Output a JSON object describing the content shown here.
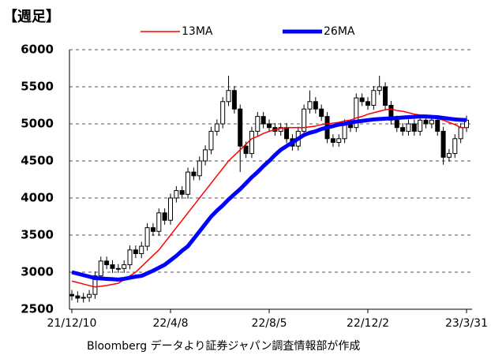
{
  "chart_data": {
    "type": "candlestick",
    "title": "【週足】",
    "source": "Bloomberg データより証券ジャパン調査情報部が作成",
    "categories": [
      "21/12/10",
      null,
      null,
      null,
      null,
      null,
      null,
      null,
      null,
      null,
      null,
      null,
      null,
      null,
      null,
      null,
      null,
      "22/4/8",
      null,
      null,
      null,
      null,
      null,
      null,
      null,
      null,
      null,
      null,
      null,
      null,
      null,
      null,
      null,
      null,
      "22/8/5",
      null,
      null,
      null,
      null,
      null,
      null,
      null,
      null,
      null,
      null,
      null,
      null,
      null,
      null,
      null,
      null,
      "22/12/2",
      null,
      null,
      null,
      null,
      null,
      null,
      null,
      null,
      null,
      null,
      null,
      null,
      null,
      null,
      null,
      null,
      "23/3/31"
    ],
    "open": [
      2700,
      2680,
      2650,
      2660,
      2700,
      2950,
      3150,
      3100,
      3050,
      3050,
      3100,
      3300,
      3250,
      3350,
      3600,
      3550,
      3800,
      3700,
      4000,
      4100,
      4050,
      4350,
      4300,
      4500,
      4650,
      4900,
      5000,
      5300,
      5450,
      5200,
      4700,
      4600,
      4900,
      5100,
      5000,
      4950,
      4900,
      4950,
      4800,
      4700,
      4900,
      5200,
      5300,
      5200,
      5100,
      4800,
      4750,
      4800,
      5000,
      4950,
      5350,
      5300,
      5250,
      5450,
      5500,
      5250,
      5050,
      4950,
      4900,
      5000,
      4900,
      5050,
      5000,
      5050,
      4900,
      4550,
      4600,
      4800,
      4950
    ],
    "high": [
      2760,
      2740,
      2720,
      2760,
      3010,
      3210,
      3210,
      3160,
      3110,
      3160,
      3360,
      3360,
      3410,
      3660,
      3660,
      3860,
      3860,
      4060,
      4160,
      4160,
      4410,
      4410,
      4560,
      4710,
      4960,
      5060,
      5360,
      5650,
      5510,
      5260,
      4760,
      4960,
      5160,
      5160,
      5060,
      5010,
      5010,
      5010,
      4860,
      4960,
      5260,
      5450,
      5360,
      5260,
      5160,
      4860,
      4860,
      5060,
      5060,
      5410,
      5410,
      5360,
      5510,
      5650,
      5560,
      5310,
      5110,
      5010,
      5060,
      5060,
      5110,
      5110,
      5110,
      5110,
      4960,
      4660,
      4860,
      5010,
      5110
    ],
    "low": [
      2620,
      2590,
      2590,
      2600,
      2640,
      2890,
      3040,
      2990,
      2990,
      2990,
      3040,
      3190,
      3190,
      3290,
      3490,
      3490,
      3640,
      3640,
      3940,
      3990,
      3990,
      4240,
      4240,
      4440,
      4590,
      4840,
      4940,
      5240,
      5140,
      4350,
      4540,
      4540,
      4840,
      4940,
      4890,
      4840,
      4840,
      4740,
      4640,
      4640,
      4840,
      5140,
      5140,
      5040,
      4740,
      4690,
      4690,
      4740,
      4890,
      4890,
      5240,
      5190,
      5190,
      5390,
      5190,
      4990,
      4890,
      4840,
      4840,
      4840,
      4840,
      4940,
      4940,
      4840,
      4450,
      4490,
      4540,
      4740,
      4890
    ],
    "close": [
      2680,
      2650,
      2660,
      2700,
      2950,
      3150,
      3100,
      3050,
      3050,
      3100,
      3300,
      3250,
      3350,
      3600,
      3550,
      3800,
      3700,
      4000,
      4100,
      4050,
      4350,
      4300,
      4500,
      4650,
      4900,
      5000,
      5300,
      5450,
      5200,
      4700,
      4600,
      4900,
      5100,
      5000,
      4950,
      4900,
      4950,
      4800,
      4700,
      4900,
      5200,
      5300,
      5200,
      5100,
      4800,
      4750,
      4800,
      5000,
      4950,
      5350,
      5300,
      5250,
      5450,
      5500,
      5250,
      5050,
      4950,
      4900,
      5000,
      4900,
      5050,
      5000,
      5050,
      4900,
      4550,
      4600,
      4800,
      4950,
      5050
    ],
    "series": [
      {
        "name": "13MA",
        "color": "#ff0000",
        "values": [
          2880,
          2860,
          2840,
          2820,
          2800,
          2810,
          2820,
          2835,
          2850,
          2900,
          2950,
          3000,
          3075,
          3150,
          3225,
          3300,
          3400,
          3500,
          3600,
          3700,
          3800,
          3900,
          4000,
          4100,
          4200,
          4300,
          4400,
          4500,
          4575,
          4650,
          4725,
          4800,
          4830,
          4870,
          4900,
          4920,
          4940,
          4950,
          4950,
          4950,
          4950,
          4960,
          4970,
          4990,
          5000,
          5010,
          5020,
          5040,
          5050,
          5080,
          5100,
          5130,
          5150,
          5170,
          5190,
          5200,
          5180,
          5170,
          5150,
          5130,
          5120,
          5100,
          5080,
          5070,
          5050,
          5020,
          4990,
          4950,
          4950
        ]
      },
      {
        "name": "26MA",
        "color": "#0000ff",
        "values": [
          3000,
          2980,
          2960,
          2940,
          2920,
          2915,
          2910,
          2905,
          2900,
          2910,
          2925,
          2940,
          2950,
          2985,
          3020,
          3060,
          3100,
          3160,
          3220,
          3290,
          3350,
          3450,
          3550,
          3650,
          3750,
          3830,
          3900,
          3980,
          4050,
          4120,
          4200,
          4280,
          4350,
          4430,
          4500,
          4580,
          4650,
          4700,
          4750,
          4800,
          4850,
          4880,
          4900,
          4930,
          4950,
          4970,
          4990,
          5000,
          5020,
          5030,
          5040,
          5050,
          5060,
          5065,
          5070,
          5075,
          5080,
          5085,
          5090,
          5095,
          5100,
          5100,
          5095,
          5090,
          5080,
          5070,
          5060,
          5055,
          5050
        ]
      }
    ],
    "up_color": "#ffffff",
    "down_color": "#000000",
    "ylim": [
      2500,
      6000
    ],
    "yticks": [
      2500,
      3000,
      3500,
      4000,
      4500,
      5000,
      5500,
      6000
    ],
    "grid": true
  }
}
